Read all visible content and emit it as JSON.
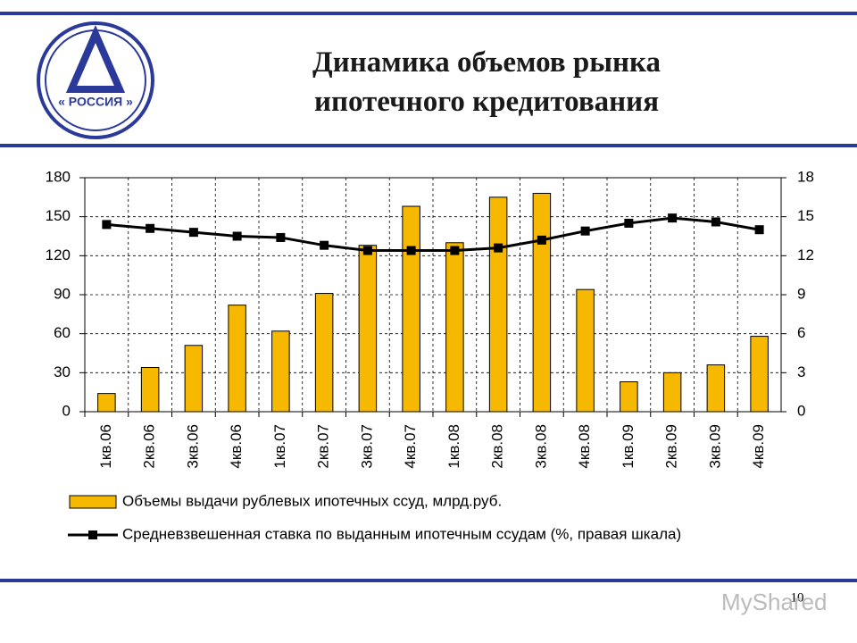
{
  "logo": "« РОССИЯ »",
  "page_number": "10",
  "watermark": "MyShared",
  "chart_data": {
    "type": "bar",
    "title": "Динамика объемов рынка ипотечного кредитования",
    "categories": [
      "1кв.06",
      "2кв.06",
      "3кв.06",
      "4кв.06",
      "1кв.07",
      "2кв.07",
      "3кв.07",
      "4кв.07",
      "1кв.08",
      "2кв.08",
      "3кв.08",
      "4кв.08",
      "1кв.09",
      "2кв.09",
      "3кв.09",
      "4кв.09"
    ],
    "series": [
      {
        "name": "Объемы выдачи рублевых ипотечных ссуд, млрд.руб.",
        "type": "bar",
        "color": "#f7b900",
        "values": [
          14,
          34,
          51,
          82,
          62,
          91,
          128,
          158,
          130,
          165,
          168,
          94,
          23,
          30,
          36,
          58
        ]
      },
      {
        "name": "Средневзвешенная ставка по выданным ипотечным ссудам (%, правая шкала)",
        "type": "line",
        "color": "#000000",
        "axis": "y2",
        "values": [
          14.4,
          14.1,
          13.8,
          13.5,
          13.4,
          12.8,
          12.4,
          12.4,
          12.4,
          12.6,
          13.2,
          13.9,
          14.5,
          14.9,
          14.6,
          14.0
        ]
      }
    ],
    "ylim": [
      0,
      180
    ],
    "yticks": [
      0,
      30,
      60,
      90,
      120,
      150,
      180
    ],
    "y2lim": [
      0,
      18
    ],
    "y2ticks": [
      0,
      3,
      6,
      9,
      12,
      15,
      18
    ],
    "grid": true
  }
}
